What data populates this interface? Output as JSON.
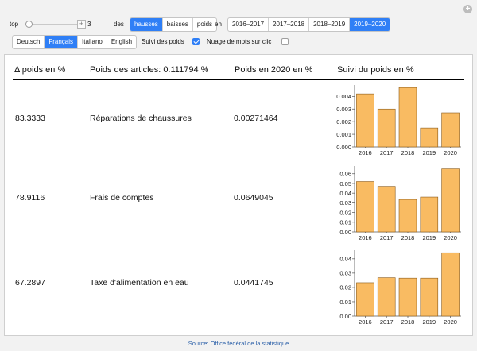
{
  "controls": {
    "top_label": "top",
    "top_value": "3",
    "des_label": "des",
    "order_options": [
      {
        "label": "hausses",
        "selected": true
      },
      {
        "label": "baisses",
        "selected": false
      },
      {
        "label": "poids",
        "selected": false
      }
    ],
    "en_label": "en",
    "period_options": [
      {
        "label": "2016–2017",
        "selected": false
      },
      {
        "label": "2017–2018",
        "selected": false
      },
      {
        "label": "2018–2019",
        "selected": false
      },
      {
        "label": "2019–2020",
        "selected": true
      }
    ],
    "language_options": [
      {
        "label": "Deutsch",
        "selected": false
      },
      {
        "label": "Français",
        "selected": true
      },
      {
        "label": "Italiano",
        "selected": false
      },
      {
        "label": "English",
        "selected": false
      }
    ],
    "suivi_label": "Suivi des poids",
    "suivi_checked": true,
    "nuage_label": "Nuage de mots sur clic",
    "nuage_checked": false
  },
  "table": {
    "headers": {
      "delta": "Δ poids en %",
      "articles": "Poids des articles: 0.111794 %",
      "poids2020": "Poids en 2020 en %",
      "suivi": "Suivi du poids en %"
    },
    "rows": [
      {
        "delta": "83.3333",
        "article": "Réparations de chaussures",
        "weight": "0.00271464"
      },
      {
        "delta": "78.9116",
        "article": "Frais de comptes",
        "weight": "0.0649045"
      },
      {
        "delta": "67.2897",
        "article": "Taxe d'alimentation en eau",
        "weight": "0.0441745"
      }
    ]
  },
  "chart_data": [
    {
      "type": "bar",
      "categories": [
        "2016",
        "2017",
        "2018",
        "2019",
        "2020"
      ],
      "values": [
        0.0042,
        0.003,
        0.0047,
        0.0015,
        0.0027
      ],
      "ylim": [
        0,
        0.0049
      ],
      "yticks": [
        "0.000",
        "0.001",
        "0.002",
        "0.003",
        "0.004"
      ],
      "ytick_values": [
        0,
        0.001,
        0.002,
        0.003,
        0.004
      ],
      "bar_color": "#f9bb62"
    },
    {
      "type": "bar",
      "categories": [
        "2016",
        "2017",
        "2018",
        "2019",
        "2020"
      ],
      "values": [
        0.052,
        0.047,
        0.0335,
        0.036,
        0.065
      ],
      "ylim": [
        0,
        0.068
      ],
      "yticks": [
        "0.00",
        "0.01",
        "0.02",
        "0.03",
        "0.04",
        "0.05",
        "0.06"
      ],
      "ytick_values": [
        0,
        0.01,
        0.02,
        0.03,
        0.04,
        0.05,
        0.06
      ],
      "bar_color": "#f9bb62"
    },
    {
      "type": "bar",
      "categories": [
        "2016",
        "2017",
        "2018",
        "2019",
        "2020"
      ],
      "values": [
        0.0233,
        0.0268,
        0.0265,
        0.0265,
        0.0442
      ],
      "ylim": [
        0,
        0.046
      ],
      "yticks": [
        "0.00",
        "0.01",
        "0.02",
        "0.03",
        "0.04"
      ],
      "ytick_values": [
        0,
        0.01,
        0.02,
        0.03,
        0.04
      ],
      "bar_color": "#f9bb62"
    }
  ],
  "footer": {
    "source": "Source: Office fédéral de la statistique"
  },
  "colors": {
    "accent": "#2f7ff6",
    "bar": "#f9bb62",
    "footer_link": "#2a5fa8"
  }
}
